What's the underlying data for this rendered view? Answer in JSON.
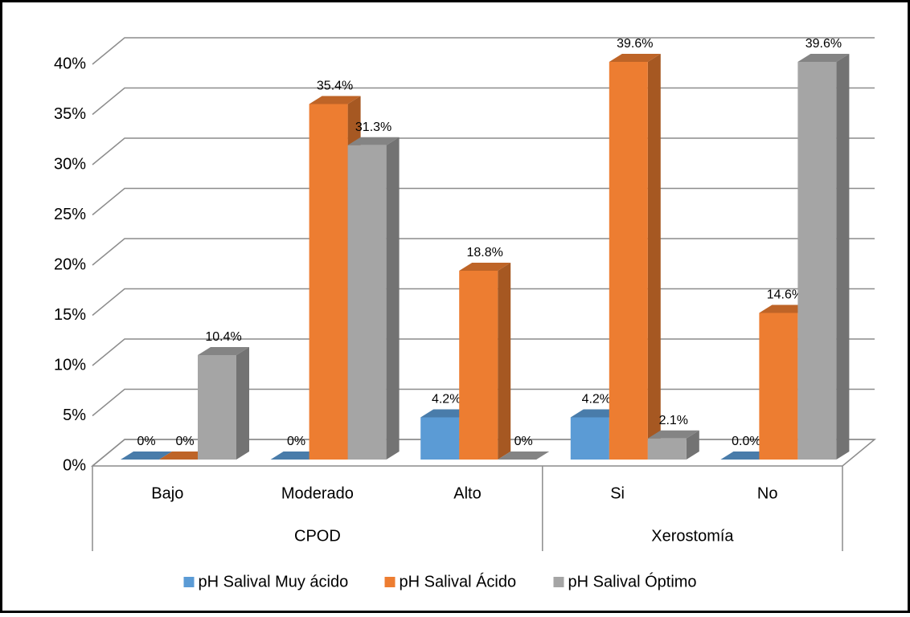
{
  "chart_data": {
    "type": "bar3d",
    "categories": [
      "Bajo",
      "Moderado",
      "Alto",
      "Si",
      "No"
    ],
    "groups": [
      {
        "name": "CPOD",
        "span": 3
      },
      {
        "name": "Xerostomía",
        "span": 2
      }
    ],
    "series": [
      {
        "name": "pH Salival Muy ácido",
        "color": "#5b9bd5",
        "values": [
          0,
          0,
          4.2,
          4.2,
          0.0
        ],
        "value_labels": [
          "0%",
          "0%",
          "4.2%",
          "4.2%",
          "0.0%"
        ]
      },
      {
        "name": "pH Salival Ácido",
        "color": "#ed7d31",
        "values": [
          0,
          35.4,
          18.8,
          39.6,
          14.6
        ],
        "value_labels": [
          "0%",
          "35.4%",
          "18.8%",
          "39.6%",
          "14.6%"
        ]
      },
      {
        "name": "pH Salival Óptimo",
        "color": "#a5a5a5",
        "values": [
          10.4,
          31.3,
          0,
          2.1,
          39.6
        ],
        "value_labels": [
          "10.4%",
          "31.3%",
          "0%",
          "2.1%",
          "39.6%"
        ]
      }
    ],
    "ylim": [
      0,
      40
    ],
    "yticks": [
      {
        "value": 0,
        "label": "0%"
      },
      {
        "value": 5,
        "label": "5%"
      },
      {
        "value": 10,
        "label": "10%"
      },
      {
        "value": 15,
        "label": "15%"
      },
      {
        "value": 20,
        "label": "20%"
      },
      {
        "value": 25,
        "label": "25%"
      },
      {
        "value": 30,
        "label": "30%"
      },
      {
        "value": 35,
        "label": "35%"
      },
      {
        "value": 40,
        "label": "40%"
      }
    ],
    "grid": true,
    "legend": "bottom"
  }
}
